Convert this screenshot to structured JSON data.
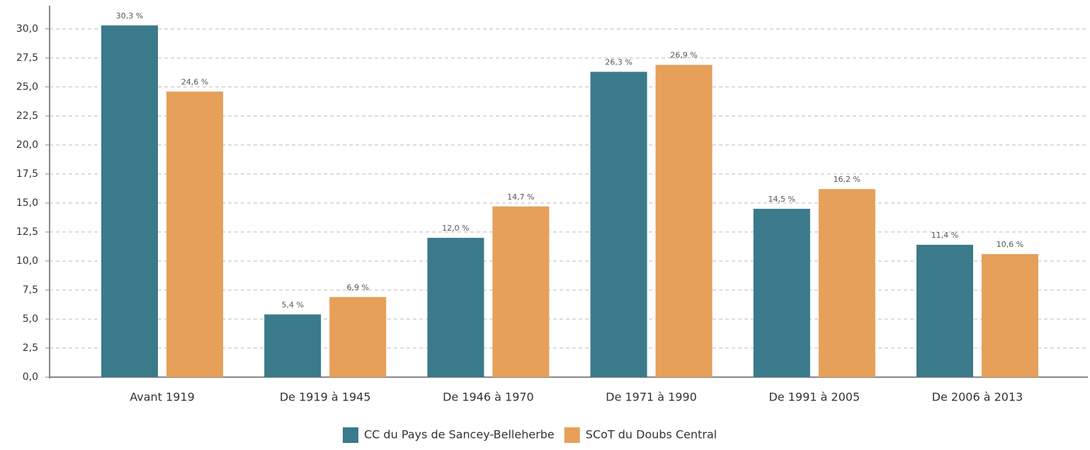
{
  "chart_data": {
    "type": "bar",
    "categories": [
      "Avant 1919",
      "De 1919 à 1945",
      "De 1946 à 1970",
      "De 1971 à 1990",
      "De 1991 à 2005",
      "De 2006 à 2013"
    ],
    "series": [
      {
        "name": "CC du Pays de Sancey-Belleherbe",
        "color": "#3a7a8b",
        "values": [
          30.3,
          5.4,
          12.0,
          26.3,
          14.5,
          11.4
        ],
        "value_labels": [
          "30,3 %",
          "5,4 %",
          "12,0 %",
          "26,3 %",
          "14,5 %",
          "11,4 %"
        ]
      },
      {
        "name": "SCoT du Doubs Central",
        "color": "#e6a05a",
        "values": [
          24.6,
          6.9,
          14.7,
          26.9,
          16.2,
          10.6
        ],
        "value_labels": [
          "24,6 %",
          "6,9 %",
          "14,7 %",
          "26,9 %",
          "16,2 %",
          "10,6 %"
        ]
      }
    ],
    "ylim": [
      0,
      32
    ],
    "yticks": [
      {
        "value": 0,
        "label": "0,0"
      },
      {
        "value": 2.5,
        "label": "2,5"
      },
      {
        "value": 5,
        "label": "5,0"
      },
      {
        "value": 7.5,
        "label": "7,5"
      },
      {
        "value": 10,
        "label": "10,0"
      },
      {
        "value": 12.5,
        "label": "12,5"
      },
      {
        "value": 15,
        "label": "15,0"
      },
      {
        "value": 17.5,
        "label": "17,5"
      },
      {
        "value": 20,
        "label": "20,0"
      },
      {
        "value": 22.5,
        "label": "22,5"
      },
      {
        "value": 25,
        "label": "25,0"
      },
      {
        "value": 27.5,
        "label": "27,5"
      },
      {
        "value": 30,
        "label": "30,0"
      }
    ],
    "grid": true,
    "legend": "bottom"
  }
}
